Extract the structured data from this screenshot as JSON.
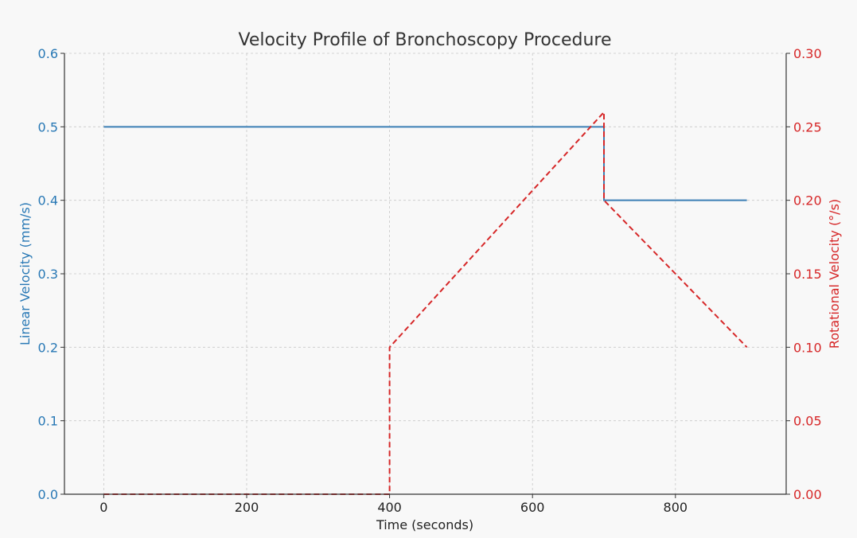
{
  "chart_data": {
    "type": "line",
    "title": "Velocity Profile of Bronchoscopy Procedure",
    "xlabel": "Time (seconds)",
    "ylabel": "Linear Velocity (mm/s)",
    "y2label": "Rotational Velocity (°/s)",
    "xlim": [
      -55,
      955
    ],
    "ylim": [
      0,
      0.6
    ],
    "y2lim": [
      0,
      0.3
    ],
    "x_ticks": [
      "0",
      "200",
      "400",
      "600",
      "800"
    ],
    "x_tick_values": [
      0,
      200,
      400,
      600,
      800
    ],
    "y_ticks": [
      "0.0",
      "0.1",
      "0.2",
      "0.3",
      "0.4",
      "0.5",
      "0.6"
    ],
    "y_tick_values": [
      0,
      0.1,
      0.2,
      0.3,
      0.4,
      0.5,
      0.6
    ],
    "y2_ticks": [
      "0.00",
      "0.05",
      "0.10",
      "0.15",
      "0.20",
      "0.25",
      "0.30"
    ],
    "y2_tick_values": [
      0,
      0.05,
      0.1,
      0.15,
      0.2,
      0.25,
      0.3
    ],
    "grid": true,
    "series": [
      {
        "axis": "left",
        "style": "solid",
        "color": "#3b7fb5",
        "x": [
          0,
          700,
          700,
          900
        ],
        "y": [
          0.5,
          0.5,
          0.4,
          0.4
        ]
      },
      {
        "axis": "right",
        "style": "dashed",
        "color": "#d62728",
        "x": [
          0,
          400,
          400,
          700,
          700,
          900
        ],
        "y": [
          0,
          0,
          0.1,
          0.26,
          0.2,
          0.1
        ]
      }
    ],
    "colors": {
      "left_axis": "#2878b5",
      "right_axis": "#d62728",
      "grid": "#c8c8c8",
      "title": "#333333"
    }
  }
}
